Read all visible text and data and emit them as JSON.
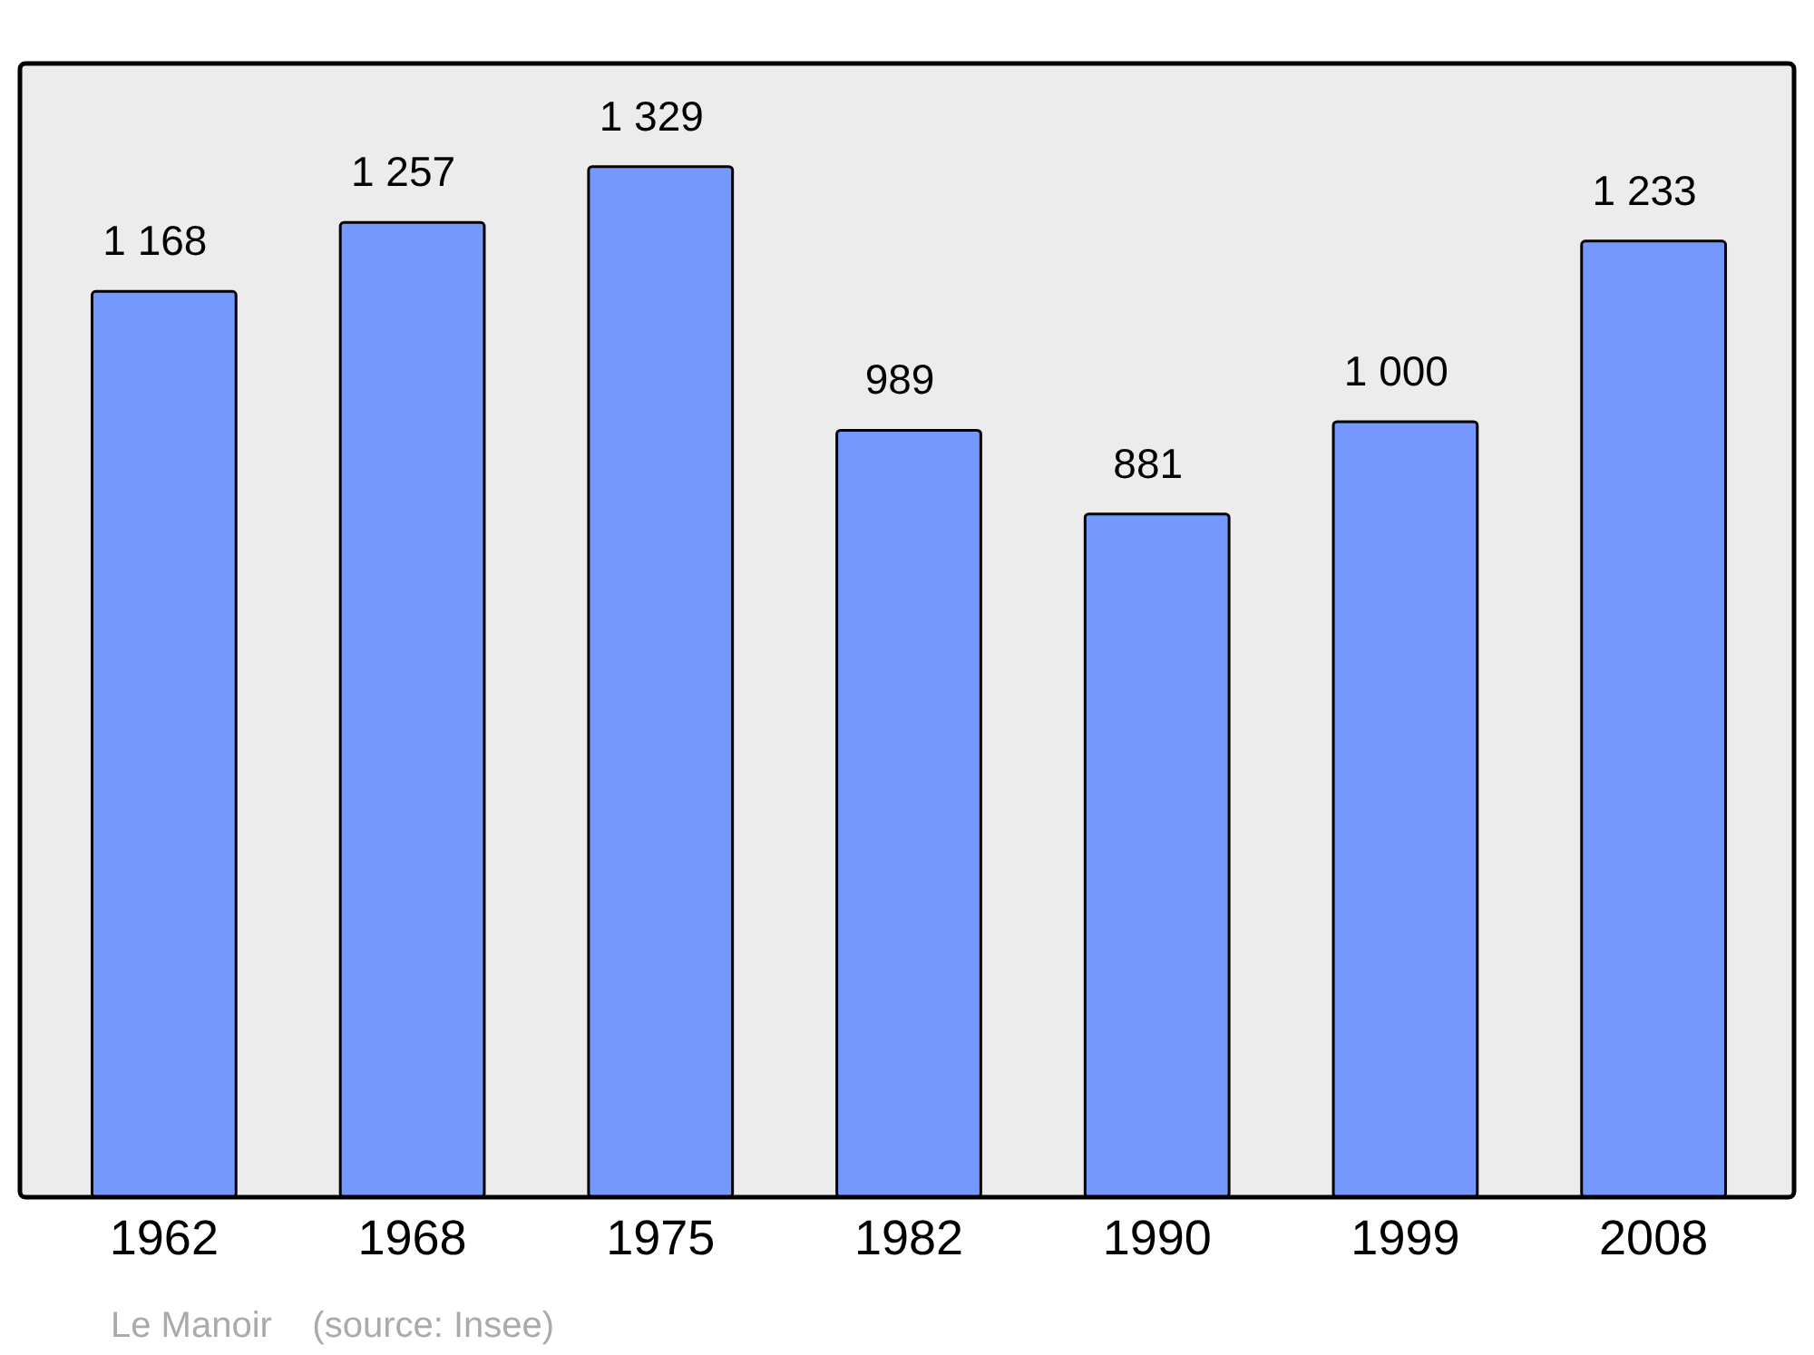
{
  "chart_data": {
    "type": "bar",
    "categories": [
      "1962",
      "1968",
      "1975",
      "1982",
      "1990",
      "1999",
      "2008"
    ],
    "values": [
      1168,
      1257,
      1329,
      989,
      881,
      1000,
      1233
    ],
    "value_labels": [
      "1 168",
      "1 257",
      "1 329",
      "989",
      "881",
      "1 000",
      "1 233"
    ],
    "color": "#7598ff",
    "ylim": [
      0,
      1462
    ],
    "tick_labels": "x",
    "grid": false,
    "annotations": [
      "Le Manoir    (source: Insee)"
    ]
  }
}
